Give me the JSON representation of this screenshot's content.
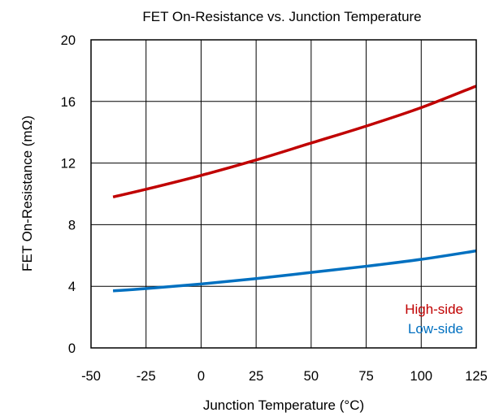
{
  "chart_data": {
    "type": "line",
    "title": "FET On-Resistance vs. Junction Temperature",
    "xlabel": "Junction Temperature (°C)",
    "ylabel": "FET On-Resistance (mΩ)",
    "xlim": [
      -50,
      125
    ],
    "ylim": [
      0,
      20
    ],
    "xticks": [
      "-50",
      "-25",
      "0",
      "25",
      "50",
      "75",
      "100",
      "125"
    ],
    "yticks": [
      "0",
      "4",
      "8",
      "12",
      "16",
      "20"
    ],
    "grid": true,
    "legend_position": "bottom-right",
    "series": [
      {
        "name": "High-side",
        "color": "#c00000",
        "x": [
          -40,
          -25,
          0,
          25,
          50,
          75,
          100,
          125
        ],
        "y": [
          9.8,
          10.3,
          11.2,
          12.2,
          13.3,
          14.4,
          15.6,
          17.0
        ]
      },
      {
        "name": "Low-side",
        "color": "#0070c0",
        "x": [
          -40,
          -25,
          0,
          25,
          50,
          75,
          100,
          125
        ],
        "y": [
          3.7,
          3.85,
          4.15,
          4.5,
          4.9,
          5.3,
          5.75,
          6.3
        ]
      }
    ]
  }
}
